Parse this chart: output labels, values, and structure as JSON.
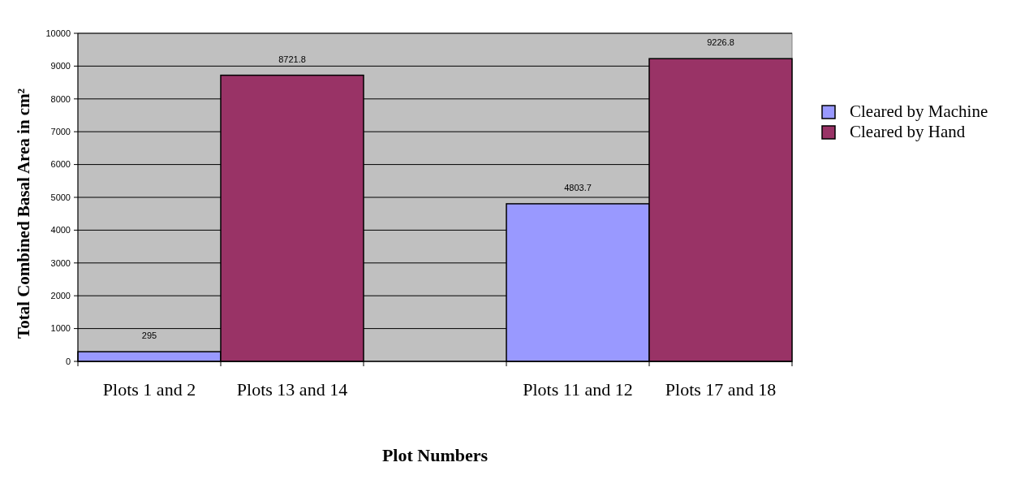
{
  "chart_data": {
    "type": "bar",
    "stacked": true,
    "xlabel": "Plot Numbers",
    "ylabel": "Total Combined Basal Area in cm²",
    "categories": [
      "Plots 1 and 2",
      "Plots 13 and 14",
      null,
      "Plots 11 and 12",
      "Plots 17 and 18"
    ],
    "series": [
      {
        "name": "Cleared by Machine",
        "color": "#9999ff",
        "values": [
          295,
          null,
          null,
          4803.7,
          null
        ]
      },
      {
        "name": "Cleared by Hand",
        "color": "#993366",
        "values": [
          null,
          8721.8,
          null,
          null,
          9226.8
        ]
      }
    ],
    "ylim": [
      0,
      10000
    ],
    "yticks": [
      0,
      1000,
      2000,
      3000,
      4000,
      5000,
      6000,
      7000,
      8000,
      9000,
      10000
    ],
    "grid": "y",
    "legend": "right",
    "data_labels": true
  }
}
